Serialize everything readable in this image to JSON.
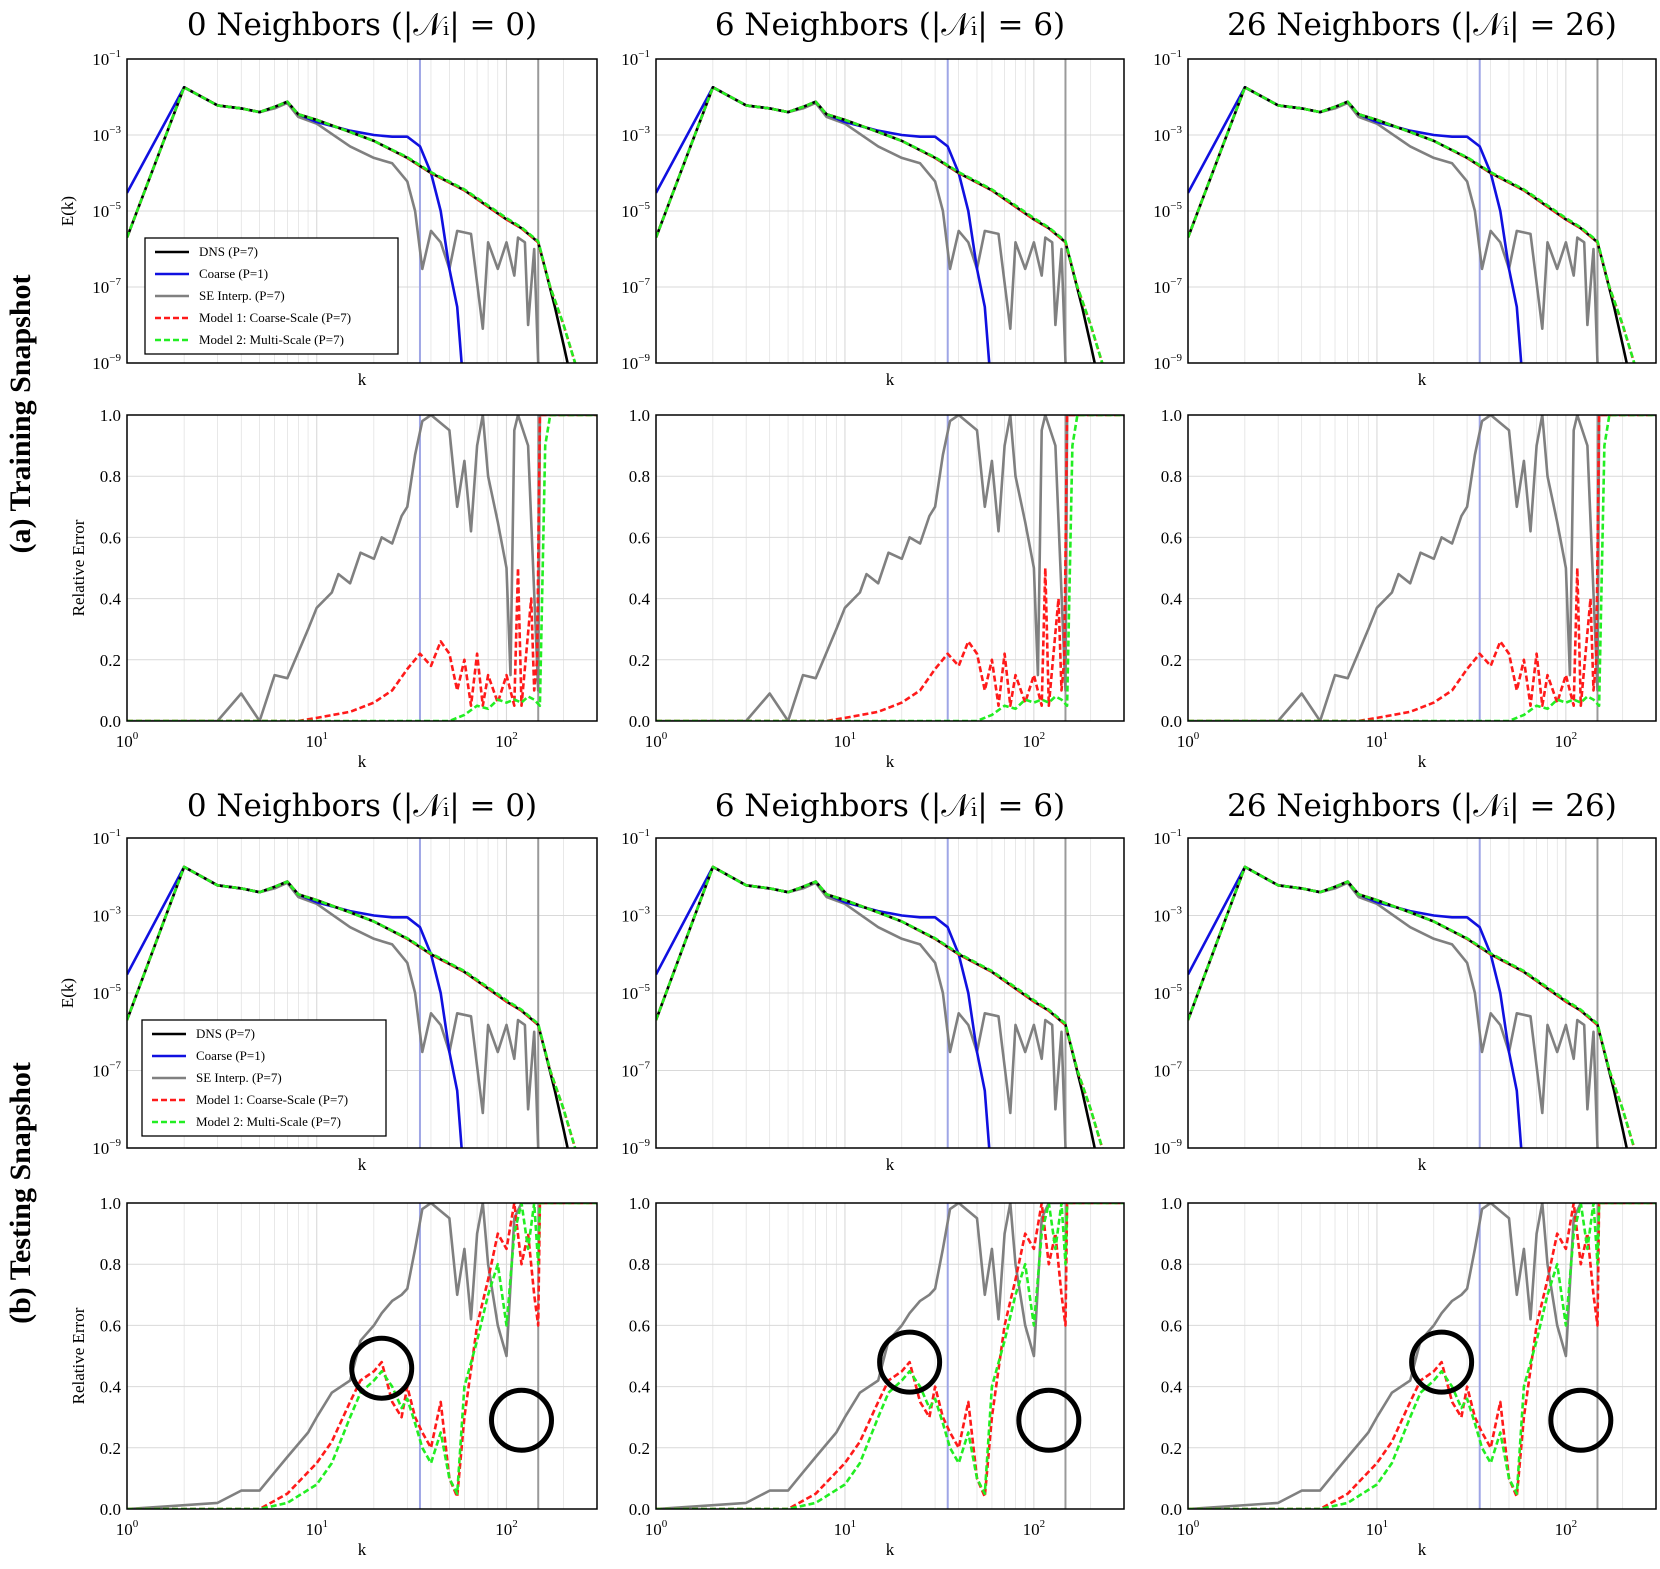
{
  "figure": {
    "row_labels": [
      {
        "id": "training",
        "text": "(a) Training Snapshot"
      },
      {
        "id": "testing",
        "text": "(b) Testing Snapshot"
      }
    ],
    "column_titles": [
      "0 Neighbors (|𝒩ᵢ| = 0)",
      "6 Neighbors (|𝒩ᵢ| = 6)",
      "26 Neighbors (|𝒩ᵢ| = 26)"
    ],
    "colors": {
      "dns": "#000000",
      "coarse": "#1010e0",
      "se_interp": "#808080",
      "model1": "#ff1a1a",
      "model2": "#22ee22",
      "vline_coarse": "#9fa6e6",
      "vline_fine": "#9a9a9a",
      "grid": "#d9d9d9",
      "circle": "#000000"
    }
  },
  "chart_data": {
    "type": "line",
    "x_label": "k",
    "x_scale": "log",
    "xlim": [
      1,
      300
    ],
    "x_ticks": [
      {
        "base": "10",
        "exp": "0"
      },
      {
        "base": "10",
        "exp": "1"
      },
      {
        "base": "10",
        "exp": "2"
      }
    ],
    "energy_panel": {
      "ylabel": "E(k)",
      "y_scale": "log",
      "ylim": [
        1e-09,
        0.1
      ],
      "y_ticks": [
        {
          "base": "10",
          "exp": "−1"
        },
        {
          "base": "10",
          "exp": "−3"
        },
        {
          "base": "10",
          "exp": "−5"
        },
        {
          "base": "10",
          "exp": "−7"
        },
        {
          "base": "10",
          "exp": "−9"
        }
      ]
    },
    "error_panel": {
      "ylabel": "Relative Error",
      "y_scale": "linear",
      "ylim": [
        0,
        1
      ],
      "y_ticks": [
        "0.0",
        "0.2",
        "0.4",
        "0.6",
        "0.8",
        "1.0"
      ]
    },
    "vertical_lines": [
      {
        "k": 35,
        "name": "coarse cutoff"
      },
      {
        "k": 147,
        "name": "fine cutoff"
      }
    ],
    "legend": [
      {
        "key": "dns",
        "label": "DNS (P=7)",
        "style": "solid"
      },
      {
        "key": "coarse",
        "label": "Coarse (P=1)",
        "style": "solid"
      },
      {
        "key": "se_interp",
        "label": "SE Interp. (P=7)",
        "style": "solid"
      },
      {
        "key": "model1",
        "label": "Model 1: Coarse-Scale (P=7)",
        "style": "dashed"
      },
      {
        "key": "model2",
        "label": "Model 2: Multi-Scale (P=7)",
        "style": "dashed"
      }
    ],
    "energy_series": {
      "dns": [
        [
          1,
          2e-06
        ],
        [
          2,
          0.018
        ],
        [
          3,
          0.006
        ],
        [
          4,
          0.005
        ],
        [
          5,
          0.004
        ],
        [
          6,
          0.0055
        ],
        [
          7,
          0.0075
        ],
        [
          8,
          0.0035
        ],
        [
          10,
          0.0025
        ],
        [
          15,
          0.0012
        ],
        [
          20,
          0.0007
        ],
        [
          30,
          0.00025
        ],
        [
          40,
          0.0001
        ],
        [
          60,
          3.5e-05
        ],
        [
          80,
          1.3e-05
        ],
        [
          100,
          6e-06
        ],
        [
          120,
          3.5e-06
        ],
        [
          147,
          1.5e-06
        ],
        [
          160,
          3e-07
        ],
        [
          180,
          3e-08
        ],
        [
          200,
          3e-09
        ],
        [
          210,
          1e-09
        ]
      ],
      "coarse": [
        [
          1,
          3e-05
        ],
        [
          2,
          0.018
        ],
        [
          3,
          0.006
        ],
        [
          4,
          0.005
        ],
        [
          5,
          0.004
        ],
        [
          6,
          0.0055
        ],
        [
          7,
          0.0075
        ],
        [
          8,
          0.0035
        ],
        [
          10,
          0.0022
        ],
        [
          15,
          0.0013
        ],
        [
          20,
          0.001
        ],
        [
          25,
          0.0009
        ],
        [
          30,
          0.0009
        ],
        [
          35,
          0.0005
        ],
        [
          40,
          0.0001
        ],
        [
          45,
          1e-05
        ],
        [
          50,
          3e-07
        ],
        [
          55,
          3e-08
        ],
        [
          58,
          1e-09
        ]
      ],
      "se_interp": [
        [
          1,
          2e-06
        ],
        [
          2,
          0.018
        ],
        [
          3,
          0.006
        ],
        [
          4,
          0.005
        ],
        [
          5,
          0.004
        ],
        [
          6,
          0.005
        ],
        [
          7,
          0.007
        ],
        [
          8,
          0.003
        ],
        [
          10,
          0.002
        ],
        [
          15,
          0.0005
        ],
        [
          20,
          0.00025
        ],
        [
          25,
          0.00018
        ],
        [
          30,
          6e-05
        ],
        [
          33,
          1e-05
        ],
        [
          36,
          3e-07
        ],
        [
          40,
          3e-06
        ],
        [
          45,
          1.5e-06
        ],
        [
          50,
          3e-07
        ],
        [
          55,
          3e-06
        ],
        [
          65,
          2.5e-06
        ],
        [
          75,
          8e-09
        ],
        [
          80,
          1.5e-06
        ],
        [
          90,
          3e-07
        ],
        [
          100,
          1.5e-06
        ],
        [
          110,
          2e-07
        ],
        [
          115,
          2e-06
        ],
        [
          125,
          1.5e-06
        ],
        [
          130,
          1e-08
        ],
        [
          140,
          1e-06
        ],
        [
          147,
          1e-09
        ]
      ],
      "model1": [
        [
          1,
          2e-06
        ],
        [
          2,
          0.018
        ],
        [
          3,
          0.006
        ],
        [
          4,
          0.005
        ],
        [
          5,
          0.004
        ],
        [
          6,
          0.0055
        ],
        [
          7,
          0.0075
        ],
        [
          8,
          0.0035
        ],
        [
          10,
          0.0025
        ],
        [
          15,
          0.0012
        ],
        [
          20,
          0.0007
        ],
        [
          30,
          0.00025
        ],
        [
          40,
          0.0001
        ],
        [
          60,
          3.5e-05
        ],
        [
          80,
          1.3e-05
        ],
        [
          100,
          6e-06
        ],
        [
          120,
          3.5e-06
        ],
        [
          147,
          1.5e-06
        ],
        [
          170,
          1e-07
        ],
        [
          200,
          1e-08
        ],
        [
          230,
          1e-09
        ]
      ],
      "model2": [
        [
          1,
          2e-06
        ],
        [
          2,
          0.018
        ],
        [
          3,
          0.006
        ],
        [
          4,
          0.005
        ],
        [
          5,
          0.004
        ],
        [
          6,
          0.0055
        ],
        [
          7,
          0.0075
        ],
        [
          8,
          0.0035
        ],
        [
          10,
          0.0025
        ],
        [
          15,
          0.0012
        ],
        [
          20,
          0.0007
        ],
        [
          30,
          0.00026
        ],
        [
          40,
          0.000105
        ],
        [
          60,
          3.7e-05
        ],
        [
          80,
          1.4e-05
        ],
        [
          100,
          6.5e-06
        ],
        [
          120,
          3.7e-06
        ],
        [
          147,
          1.6e-06
        ],
        [
          170,
          1e-07
        ],
        [
          200,
          1e-08
        ],
        [
          230,
          1e-09
        ]
      ]
    },
    "training_error_series": {
      "se_interp": [
        [
          1,
          0
        ],
        [
          3,
          0
        ],
        [
          4,
          0.09
        ],
        [
          5,
          0
        ],
        [
          6,
          0.15
        ],
        [
          7,
          0.14
        ],
        [
          9,
          0.3
        ],
        [
          10,
          0.37
        ],
        [
          12,
          0.42
        ],
        [
          13,
          0.48
        ],
        [
          15,
          0.45
        ],
        [
          17,
          0.55
        ],
        [
          20,
          0.53
        ],
        [
          22,
          0.6
        ],
        [
          25,
          0.58
        ],
        [
          28,
          0.67
        ],
        [
          30,
          0.7
        ],
        [
          33,
          0.87
        ],
        [
          36,
          0.98
        ],
        [
          40,
          1.0
        ],
        [
          50,
          0.95
        ],
        [
          55,
          0.7
        ],
        [
          60,
          0.85
        ],
        [
          65,
          0.62
        ],
        [
          70,
          0.9
        ],
        [
          75,
          1.0
        ],
        [
          80,
          0.8
        ],
        [
          90,
          0.65
        ],
        [
          100,
          0.5
        ],
        [
          105,
          0.15
        ],
        [
          110,
          0.95
        ],
        [
          115,
          1.0
        ],
        [
          130,
          0.9
        ],
        [
          147,
          0.1
        ],
        [
          150,
          1.0
        ],
        [
          300,
          1.0
        ]
      ],
      "model1": [
        [
          1,
          0
        ],
        [
          8,
          0
        ],
        [
          10,
          0.01
        ],
        [
          15,
          0.03
        ],
        [
          20,
          0.06
        ],
        [
          25,
          0.1
        ],
        [
          30,
          0.17
        ],
        [
          35,
          0.22
        ],
        [
          40,
          0.18
        ],
        [
          45,
          0.26
        ],
        [
          50,
          0.22
        ],
        [
          55,
          0.1
        ],
        [
          60,
          0.2
        ],
        [
          65,
          0.05
        ],
        [
          70,
          0.22
        ],
        [
          75,
          0.05
        ],
        [
          80,
          0.15
        ],
        [
          90,
          0.06
        ],
        [
          100,
          0.15
        ],
        [
          110,
          0.05
        ],
        [
          115,
          0.5
        ],
        [
          120,
          0.05
        ],
        [
          135,
          0.4
        ],
        [
          140,
          0.1
        ],
        [
          145,
          0.2
        ],
        [
          150,
          1.0
        ],
        [
          300,
          1.0
        ]
      ],
      "model2": [
        [
          1,
          0
        ],
        [
          50,
          0
        ],
        [
          60,
          0.02
        ],
        [
          70,
          0.05
        ],
        [
          80,
          0.04
        ],
        [
          90,
          0.07
        ],
        [
          100,
          0.06
        ],
        [
          110,
          0.07
        ],
        [
          120,
          0.06
        ],
        [
          130,
          0.08
        ],
        [
          140,
          0.07
        ],
        [
          150,
          0.05
        ],
        [
          160,
          0.9
        ],
        [
          170,
          1.0
        ],
        [
          300,
          1.0
        ]
      ]
    },
    "testing_error_series": {
      "se_interp": [
        [
          1,
          0
        ],
        [
          3,
          0.02
        ],
        [
          4,
          0.06
        ],
        [
          5,
          0.06
        ],
        [
          6,
          0.12
        ],
        [
          7,
          0.17
        ],
        [
          9,
          0.25
        ],
        [
          10,
          0.3
        ],
        [
          12,
          0.38
        ],
        [
          15,
          0.42
        ],
        [
          17,
          0.55
        ],
        [
          20,
          0.6
        ],
        [
          22,
          0.64
        ],
        [
          25,
          0.68
        ],
        [
          28,
          0.7
        ],
        [
          30,
          0.72
        ],
        [
          33,
          0.85
        ],
        [
          36,
          0.98
        ],
        [
          40,
          1.0
        ],
        [
          50,
          0.95
        ],
        [
          55,
          0.7
        ],
        [
          60,
          0.85
        ],
        [
          65,
          0.62
        ],
        [
          70,
          0.9
        ],
        [
          75,
          1.0
        ],
        [
          80,
          0.8
        ],
        [
          90,
          0.6
        ],
        [
          100,
          0.5
        ],
        [
          110,
          0.95
        ],
        [
          120,
          1.0
        ],
        [
          147,
          1.0
        ],
        [
          300,
          1.0
        ]
      ],
      "model1": [
        [
          1,
          0
        ],
        [
          5,
          0
        ],
        [
          7,
          0.05
        ],
        [
          10,
          0.15
        ],
        [
          12,
          0.22
        ],
        [
          15,
          0.35
        ],
        [
          17,
          0.42
        ],
        [
          20,
          0.45
        ],
        [
          22,
          0.48
        ],
        [
          25,
          0.35
        ],
        [
          28,
          0.3
        ],
        [
          30,
          0.4
        ],
        [
          33,
          0.3
        ],
        [
          36,
          0.25
        ],
        [
          40,
          0.2
        ],
        [
          45,
          0.35
        ],
        [
          50,
          0.1
        ],
        [
          55,
          0.04
        ],
        [
          60,
          0.3
        ],
        [
          70,
          0.6
        ],
        [
          80,
          0.75
        ],
        [
          90,
          0.9
        ],
        [
          100,
          0.85
        ],
        [
          110,
          1.0
        ],
        [
          120,
          0.8
        ],
        [
          130,
          0.9
        ],
        [
          140,
          0.7
        ],
        [
          147,
          0.6
        ],
        [
          150,
          1.0
        ],
        [
          300,
          1.0
        ]
      ],
      "model2": [
        [
          1,
          0
        ],
        [
          5,
          0
        ],
        [
          7,
          0.02
        ],
        [
          10,
          0.08
        ],
        [
          12,
          0.15
        ],
        [
          15,
          0.3
        ],
        [
          17,
          0.38
        ],
        [
          20,
          0.42
        ],
        [
          22,
          0.45
        ],
        [
          25,
          0.4
        ],
        [
          28,
          0.33
        ],
        [
          30,
          0.36
        ],
        [
          33,
          0.28
        ],
        [
          36,
          0.2
        ],
        [
          40,
          0.15
        ],
        [
          45,
          0.25
        ],
        [
          50,
          0.1
        ],
        [
          55,
          0.05
        ],
        [
          60,
          0.4
        ],
        [
          70,
          0.55
        ],
        [
          80,
          0.7
        ],
        [
          90,
          0.8
        ],
        [
          100,
          0.6
        ],
        [
          110,
          0.9
        ],
        [
          120,
          1.0
        ],
        [
          130,
          0.85
        ],
        [
          140,
          1.0
        ],
        [
          147,
          0.8
        ],
        [
          150,
          1.0
        ],
        [
          300,
          1.0
        ]
      ]
    },
    "highlight_circles_k": [
      22,
      120
    ]
  }
}
